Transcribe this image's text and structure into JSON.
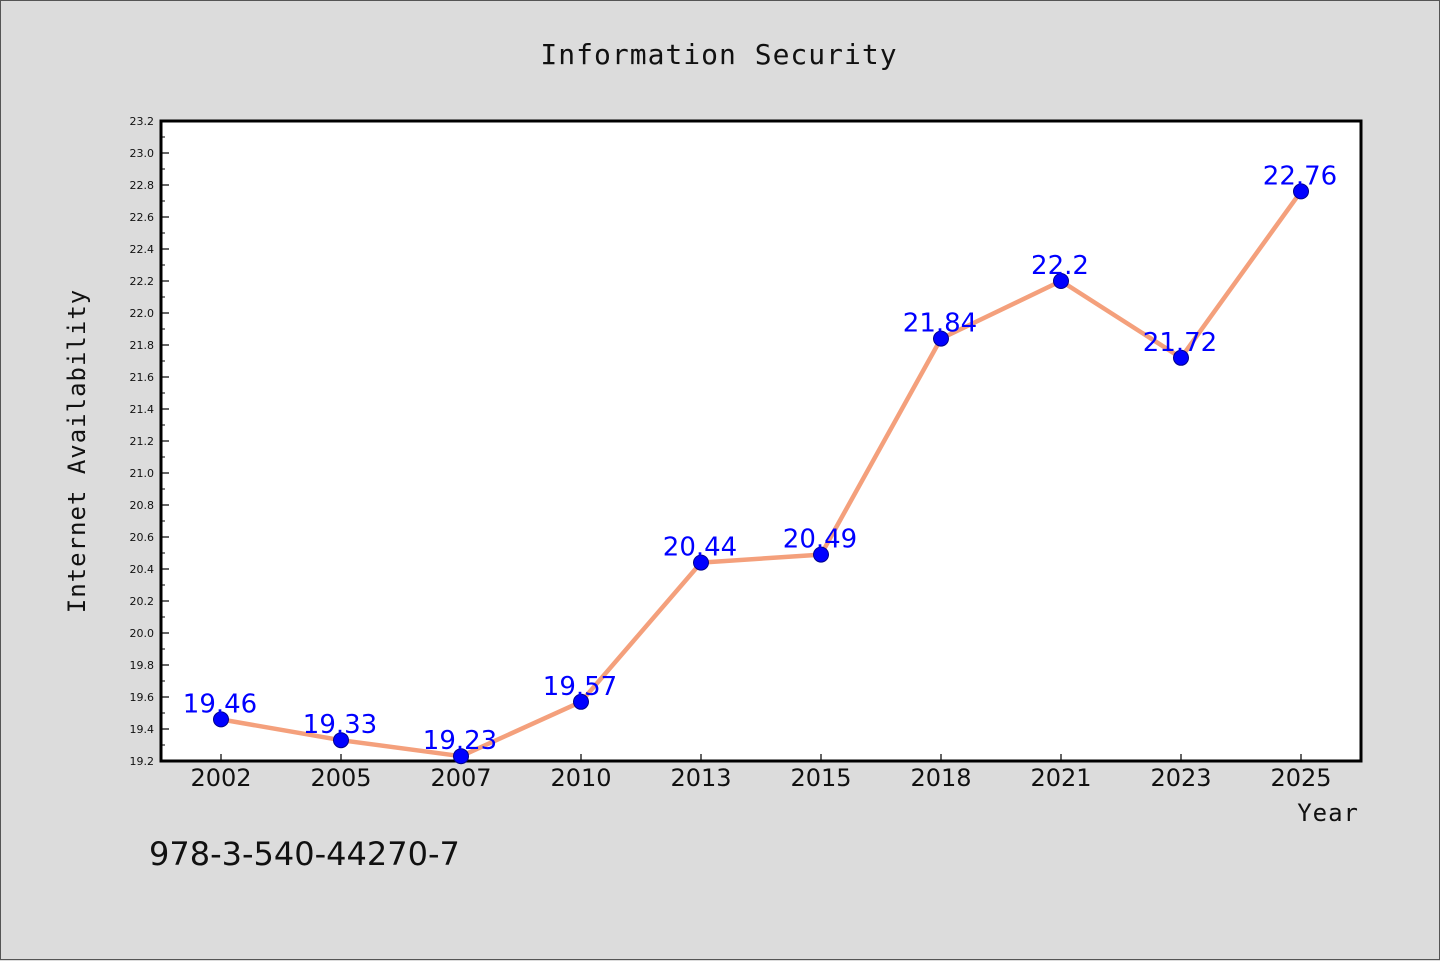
{
  "chart_data": {
    "type": "line",
    "title": "Information Security",
    "xlabel": "Year",
    "ylabel": "Internet Availability",
    "categories": [
      "2002",
      "2005",
      "2007",
      "2010",
      "2013",
      "2015",
      "2018",
      "2021",
      "2023",
      "2025"
    ],
    "series": [
      {
        "values": [
          19.46,
          19.33,
          19.23,
          19.57,
          20.44,
          20.49,
          21.84,
          22.2,
          21.72,
          22.76
        ],
        "data_labels": [
          "19.46",
          "19.33",
          "19.23",
          "19.57",
          "20.44",
          "20.49",
          "21.84",
          "22.2",
          "21.72",
          "22.76"
        ]
      }
    ],
    "ylim": [
      19.2,
      23.2
    ],
    "yticks": [
      "19.2",
      "19.4",
      "19.6",
      "19.8",
      "20.0",
      "20.2",
      "20.4",
      "20.6",
      "20.8",
      "21.0",
      "21.2",
      "21.4",
      "21.6",
      "21.8",
      "22.0",
      "22.2",
      "22.4",
      "22.6",
      "22.8",
      "23.0",
      "23.2"
    ],
    "grid": false,
    "legend": "none",
    "colors": {
      "line": "#f4a07c",
      "marker": "#0000ff",
      "data_label": "#0000ff",
      "background": "#dcdcdc",
      "plot_background": "#ffffff"
    }
  },
  "footer_text": "978-3-540-44270-7"
}
